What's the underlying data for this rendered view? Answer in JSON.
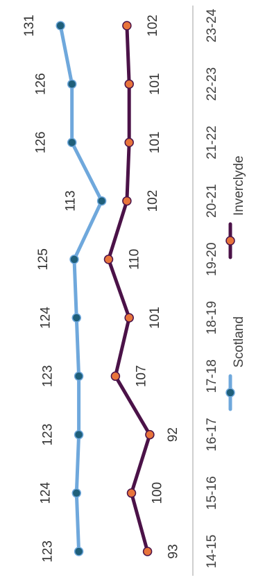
{
  "chart_data": {
    "type": "line",
    "orientation": "rotated-90-clockwise",
    "categories": [
      "14-15",
      "15-16",
      "16-17",
      "17-18",
      "18-19",
      "19-20",
      "20-21",
      "21-22",
      "22-23",
      "23-24"
    ],
    "series": [
      {
        "name": "Scotland",
        "values": [
          123,
          124,
          123,
          123,
          124,
          125,
          113,
          126,
          126,
          131
        ],
        "line_color": "#6fa8dc",
        "marker_color": "#1f5f7a",
        "labels": [
          "123",
          "124",
          "123",
          "123",
          "124",
          "125",
          "113",
          "126",
          "126",
          "131"
        ]
      },
      {
        "name": "Inverclyde",
        "values": [
          93,
          100,
          92,
          107,
          101,
          110,
          102,
          101,
          101,
          102
        ],
        "line_color": "#4b1248",
        "marker_color": "#e8743b",
        "labels": [
          "93",
          "100",
          "92",
          "107",
          "101",
          "110",
          "102",
          "101",
          "101",
          "102"
        ]
      }
    ],
    "ylim": [
      85,
      135
    ],
    "grid": false,
    "legend_position": "bottom"
  }
}
